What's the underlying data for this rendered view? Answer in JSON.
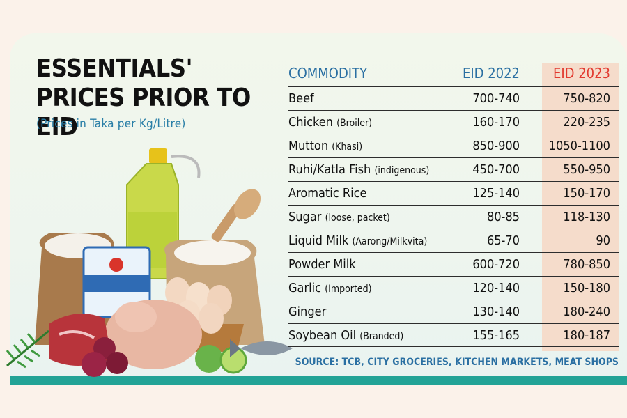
{
  "title": "ESSENTIALS' PRICES PRIOR TO EID",
  "subtitle": "(Prices in Taka per Kg/Litre)",
  "table": {
    "headers": {
      "commodity": "COMMODITY",
      "eid2022": "EID 2022",
      "eid2023": "EID 2023"
    },
    "rows": [
      {
        "name": "Beef",
        "note": "",
        "eid2022": "700-740",
        "eid2023": "750-820"
      },
      {
        "name": "Chicken",
        "note": "(Broiler)",
        "eid2022": "160-170",
        "eid2023": "220-235"
      },
      {
        "name": "Mutton",
        "note": "(Khasi)",
        "eid2022": "850-900",
        "eid2023": "1050-1100"
      },
      {
        "name": "Ruhi/Katla Fish",
        "note": "(indigenous)",
        "eid2022": "450-700",
        "eid2023": "550-950"
      },
      {
        "name": "Aromatic Rice",
        "note": "",
        "eid2022": "125-140",
        "eid2023": "150-170"
      },
      {
        "name": "Sugar",
        "note": "(loose, packet)",
        "eid2022": "80-85",
        "eid2023": "118-130"
      },
      {
        "name": "Liquid Milk",
        "note": "(Aarong/Milkvita)",
        "eid2022": "65-70",
        "eid2023": "90"
      },
      {
        "name": "Powder Milk",
        "note": "",
        "eid2022": "600-720",
        "eid2023": "780-850"
      },
      {
        "name": "Garlic",
        "note": "(Imported)",
        "eid2022": "120-140",
        "eid2023": "150-180"
      },
      {
        "name": "Ginger",
        "note": "",
        "eid2022": "130-140",
        "eid2023": "180-240"
      },
      {
        "name": "Soybean Oil",
        "note": "(Branded)",
        "eid2022": "155-165",
        "eid2023": "180-187"
      }
    ]
  },
  "source": "SOURCE: TCB, CITY GROCERIES, KITCHEN MARKETS, MEAT SHOPS",
  "colors": {
    "header_blue": "#2a6fa2",
    "header_red": "#e23a2f",
    "highlight": "#f5dccb",
    "teal": "#22a396"
  }
}
